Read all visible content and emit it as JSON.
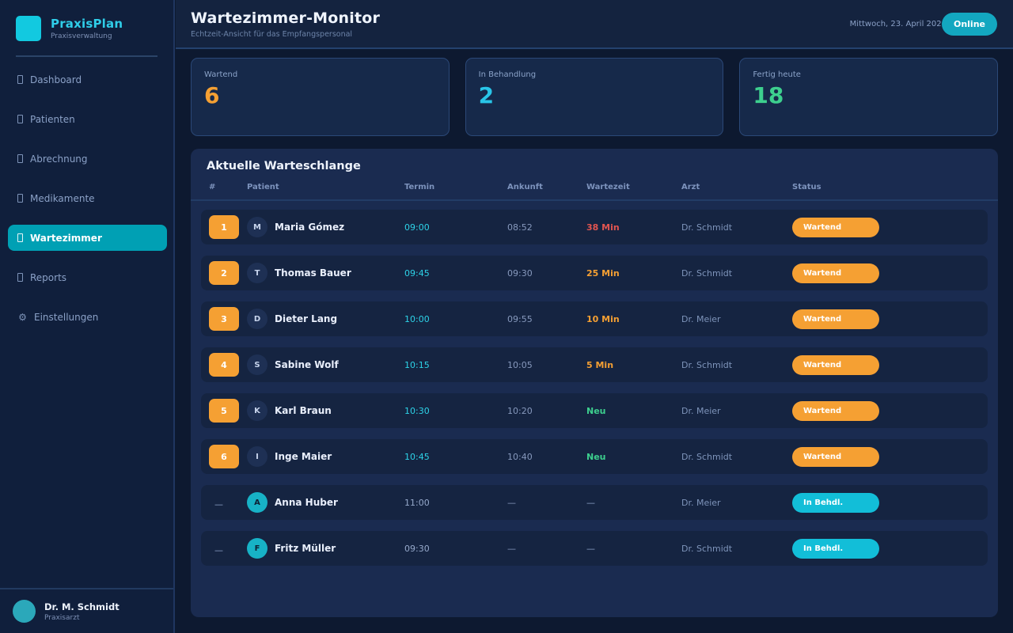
{
  "brand": {
    "name": "PraxisPlan",
    "subtitle": "Praxisverwaltung"
  },
  "sidebar": {
    "items": [
      {
        "label": "Dashboard",
        "slug": "dashboard",
        "icon": "dashboard-icon",
        "glyph": "",
        "active": false
      },
      {
        "label": "Patienten",
        "slug": "patienten",
        "icon": "patients-icon",
        "glyph": "",
        "active": false
      },
      {
        "label": "Abrechnung",
        "slug": "abrechnung",
        "icon": "billing-icon",
        "glyph": "",
        "active": false
      },
      {
        "label": "Medikamente",
        "slug": "medikamente",
        "icon": "medication-icon",
        "glyph": "",
        "active": false
      },
      {
        "label": "Wartezimmer",
        "slug": "wartezimmer",
        "icon": "waitingroom-icon",
        "glyph": "",
        "active": true
      },
      {
        "label": "Reports",
        "slug": "reports",
        "icon": "reports-icon",
        "glyph": "",
        "active": false
      },
      {
        "label": "Einstellungen",
        "slug": "einstellungen",
        "icon": "gear-icon",
        "glyph": "⚙",
        "active": false
      }
    ]
  },
  "user": {
    "name": "Dr. M. Schmidt",
    "role": "Praxisarzt"
  },
  "header": {
    "title": "Wartezimmer-Monitor",
    "subtitle": "Echtzeit-Ansicht für das Empfangspersonal",
    "date": "Mittwoch, 23. April 2026",
    "status_badge": "Online"
  },
  "stats": [
    {
      "label": "Wartend",
      "value": "6",
      "color": "#f5a033"
    },
    {
      "label": "In Behandlung",
      "value": "2",
      "color": "#29c5e8"
    },
    {
      "label": "Fertig heute",
      "value": "18",
      "color": "#3dcf8e"
    }
  ],
  "queue": {
    "title": "Aktuelle Warteschlange",
    "columns": [
      "#",
      "Patient",
      "Termin",
      "Ankunft",
      "Wartezeit",
      "Arzt",
      "Status"
    ],
    "rows": [
      {
        "num": "1",
        "initial": "M",
        "name": "Maria Gómez",
        "termin": "09:00",
        "ankunft": "08:52",
        "wartezeit": "38 Min",
        "wait_class": "critical",
        "arzt": "Dr. Schmidt",
        "status": "Wartend",
        "status_type": "wartend"
      },
      {
        "num": "2",
        "initial": "T",
        "name": "Thomas Bauer",
        "termin": "09:45",
        "ankunft": "09:30",
        "wartezeit": "25 Min",
        "wait_class": "warn",
        "arzt": "Dr. Schmidt",
        "status": "Wartend",
        "status_type": "wartend"
      },
      {
        "num": "3",
        "initial": "D",
        "name": "Dieter Lang",
        "termin": "10:00",
        "ankunft": "09:55",
        "wartezeit": "10 Min",
        "wait_class": "warn",
        "arzt": "Dr. Meier",
        "status": "Wartend",
        "status_type": "wartend"
      },
      {
        "num": "4",
        "initial": "S",
        "name": "Sabine Wolf",
        "termin": "10:15",
        "ankunft": "10:05",
        "wartezeit": "5 Min",
        "wait_class": "warn",
        "arzt": "Dr. Schmidt",
        "status": "Wartend",
        "status_type": "wartend"
      },
      {
        "num": "5",
        "initial": "K",
        "name": "Karl Braun",
        "termin": "10:30",
        "ankunft": "10:20",
        "wartezeit": "Neu",
        "wait_class": "new",
        "arzt": "Dr. Meier",
        "status": "Wartend",
        "status_type": "wartend"
      },
      {
        "num": "6",
        "initial": "I",
        "name": "Inge Maier",
        "termin": "10:45",
        "ankunft": "10:40",
        "wartezeit": "Neu",
        "wait_class": "new",
        "arzt": "Dr. Schmidt",
        "status": "Wartend",
        "status_type": "wartend"
      },
      {
        "num": "—",
        "initial": "A",
        "name": "Anna Huber",
        "termin": "11:00",
        "ankunft": "—",
        "wartezeit": "—",
        "wait_class": "none",
        "arzt": "Dr. Meier",
        "status": "In Behdl.",
        "status_type": "behandlung"
      },
      {
        "num": "—",
        "initial": "F",
        "name": "Fritz Müller",
        "termin": "09:30",
        "ankunft": "—",
        "wartezeit": "—",
        "wait_class": "none",
        "arzt": "Dr. Schmidt",
        "status": "In Behdl.",
        "status_type": "behandlung"
      }
    ]
  }
}
